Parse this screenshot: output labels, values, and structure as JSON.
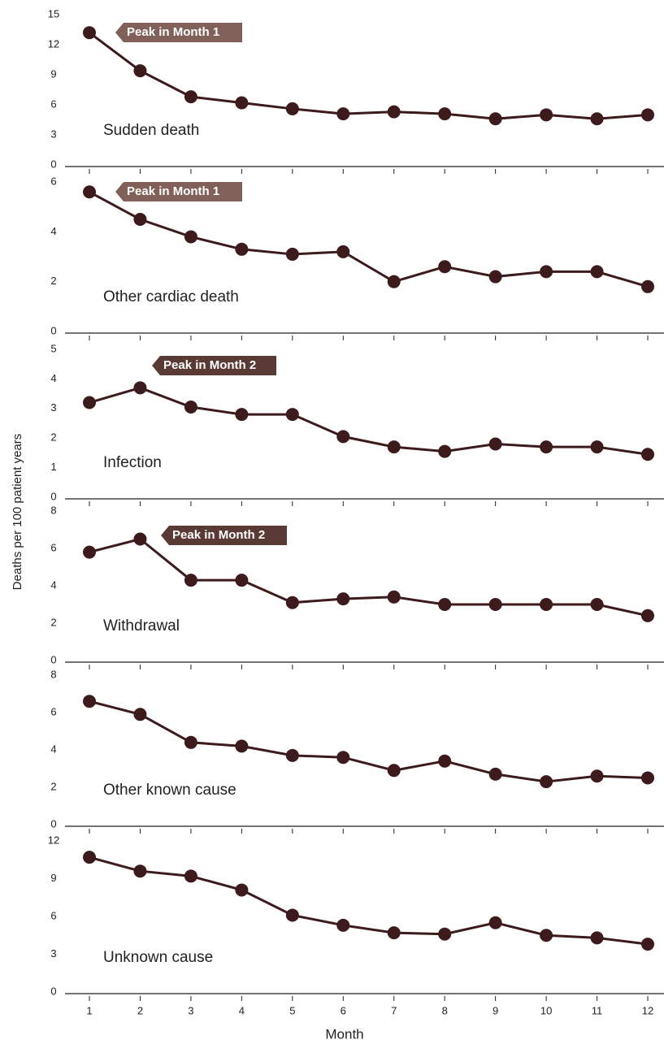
{
  "ylabel": "Deaths per 100 patient years",
  "chart_data": [
    {
      "type": "line",
      "label": "Sudden death",
      "annotation": "Peak in Month 1",
      "color": "#3d1a1c",
      "x": [
        1,
        2,
        3,
        4,
        5,
        6,
        7,
        8,
        9,
        10,
        11,
        12
      ],
      "values": [
        13.2,
        9.4,
        6.8,
        6.2,
        5.6,
        5.1,
        5.3,
        5.1,
        4.6,
        5.0,
        4.6,
        5.0
      ],
      "ylim": [
        0,
        15
      ],
      "yticks": [
        0,
        3,
        6,
        9,
        12,
        15
      ]
    },
    {
      "type": "line",
      "label": "Other cardiac death",
      "annotation": "Peak in Month 1",
      "color": "#3d1a1c",
      "x": [
        1,
        2,
        3,
        4,
        5,
        6,
        7,
        8,
        9,
        10,
        11,
        12
      ],
      "values": [
        5.6,
        4.5,
        3.8,
        3.3,
        3.1,
        3.2,
        2.0,
        2.6,
        2.2,
        2.4,
        2.4,
        1.8
      ],
      "ylim": [
        0,
        6
      ],
      "yticks": [
        0,
        2,
        4,
        6
      ]
    },
    {
      "type": "line",
      "label": "Infection",
      "annotation": "Peak in Month 2",
      "color": "#3d1a1c",
      "x": [
        1,
        2,
        3,
        4,
        5,
        6,
        7,
        8,
        9,
        10,
        11,
        12
      ],
      "values": [
        3.2,
        3.7,
        3.05,
        2.8,
        2.8,
        2.05,
        1.7,
        1.55,
        1.8,
        1.7,
        1.7,
        1.45
      ],
      "ylim": [
        0,
        5
      ],
      "yticks": [
        0,
        1,
        2,
        3,
        4,
        5
      ]
    },
    {
      "type": "line",
      "label": "Withdrawal",
      "annotation": "Peak in Month 2",
      "color": "#3d1a1c",
      "x": [
        1,
        2,
        3,
        4,
        5,
        6,
        7,
        8,
        9,
        10,
        11,
        12
      ],
      "values": [
        5.8,
        6.5,
        4.3,
        4.3,
        3.1,
        3.3,
        3.4,
        3.0,
        3.0,
        3.0,
        3.0,
        2.4
      ],
      "ylim": [
        0,
        8
      ],
      "yticks": [
        0,
        2,
        4,
        6,
        8
      ]
    },
    {
      "type": "line",
      "label": "Other known cause",
      "color": "#3d1a1c",
      "x": [
        1,
        2,
        3,
        4,
        5,
        6,
        7,
        8,
        9,
        10,
        11,
        12
      ],
      "values": [
        6.6,
        5.9,
        4.4,
        4.2,
        3.7,
        3.6,
        2.9,
        3.4,
        2.7,
        2.3,
        2.6,
        2.5
      ],
      "ylim": [
        0,
        8
      ],
      "yticks": [
        0,
        2,
        4,
        6,
        8
      ]
    },
    {
      "type": "line",
      "label": "Unknown cause",
      "color": "#3d1a1c",
      "xlabel": "Month",
      "x": [
        1,
        2,
        3,
        4,
        5,
        6,
        7,
        8,
        9,
        10,
        11,
        12
      ],
      "values": [
        10.7,
        9.6,
        9.2,
        8.1,
        6.1,
        5.3,
        4.7,
        4.6,
        5.5,
        4.5,
        4.3,
        3.8
      ],
      "ylim": [
        0,
        12
      ],
      "yticks": [
        0,
        3,
        6,
        9,
        12
      ]
    }
  ]
}
